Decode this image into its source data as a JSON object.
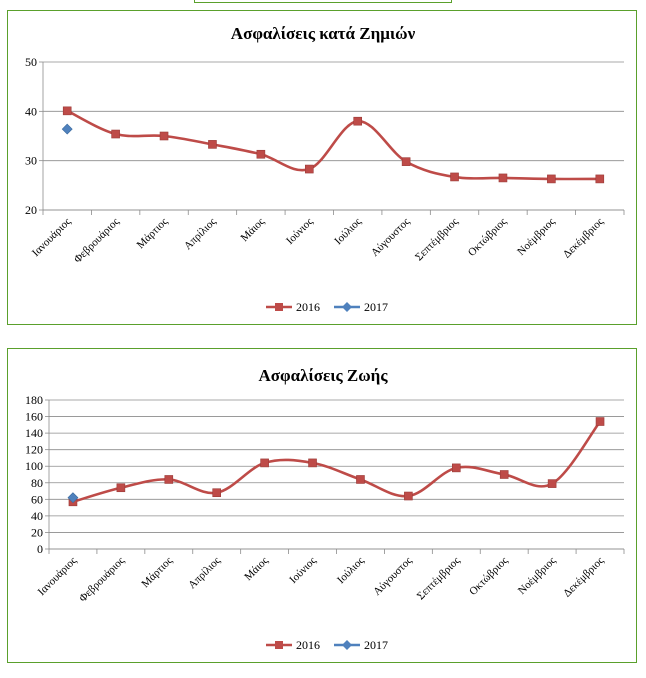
{
  "chart_data": [
    {
      "type": "line",
      "title": "Ασφαλίσεις κατά Ζημιών",
      "categories": [
        "Ιανουάριος",
        "Φεβρουάριος",
        "Μάρτιος",
        "Απρίλιος",
        "Μάιος",
        "Ιούνιος",
        "Ιούλιος",
        "Αύγουστος",
        "Σεπτέμβριος",
        "Οκτώβριος",
        "Νοέμβριος",
        "Δεκέμβριος"
      ],
      "series": [
        {
          "name": "2016",
          "color": "#be4b48",
          "marker": "square",
          "values": [
            40.1,
            35.4,
            35.0,
            33.3,
            31.3,
            28.3,
            38.0,
            29.8,
            26.7,
            26.5,
            26.3,
            26.3
          ]
        },
        {
          "name": "2017",
          "color": "#4f81bd",
          "marker": "diamond",
          "values": [
            36.4,
            null,
            null,
            null,
            null,
            null,
            null,
            null,
            null,
            null,
            null,
            null
          ]
        }
      ],
      "ylim": [
        20,
        50
      ],
      "yticks": [
        20,
        30,
        40,
        50
      ],
      "grid": true,
      "legend": "bottom",
      "smooth": true
    },
    {
      "type": "line",
      "title": "Ασφαλίσεις Ζωής",
      "categories": [
        "Ιανουάριος",
        "Φεβρουάριος",
        "Μάρτιος",
        "Απρίλιος",
        "Μάιος",
        "Ιούνιος",
        "Ιούλιος",
        "Αύγουστος",
        "Σεπτέμβριος",
        "Οκτώβριος",
        "Νοέμβριος",
        "Δεκέμβριος"
      ],
      "series": [
        {
          "name": "2016",
          "color": "#be4b48",
          "marker": "square",
          "values": [
            57,
            74,
            84,
            68,
            104,
            104,
            84,
            64,
            98,
            90,
            79,
            154
          ]
        },
        {
          "name": "2017",
          "color": "#4f81bd",
          "marker": "diamond",
          "values": [
            62,
            null,
            null,
            null,
            null,
            null,
            null,
            null,
            null,
            null,
            null,
            null
          ]
        }
      ],
      "ylim": [
        0,
        180
      ],
      "yticks": [
        0,
        20,
        40,
        60,
        80,
        100,
        120,
        140,
        160,
        180
      ],
      "grid": true,
      "legend": "bottom",
      "smooth": true
    }
  ]
}
